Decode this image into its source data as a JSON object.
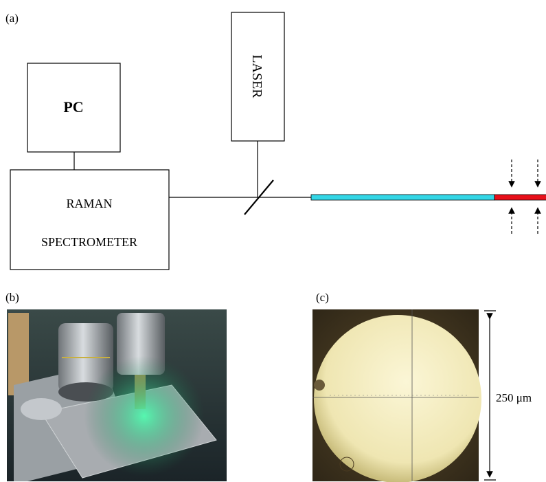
{
  "panels": {
    "a": {
      "label": "(a)",
      "pc": "PC",
      "laser": "LASER",
      "spectrometer": [
        "RAMAN",
        "SPECTROMETER"
      ]
    },
    "b": {
      "label": "(b)"
    },
    "c": {
      "label": "(c)",
      "scale": "250 μm"
    }
  }
}
